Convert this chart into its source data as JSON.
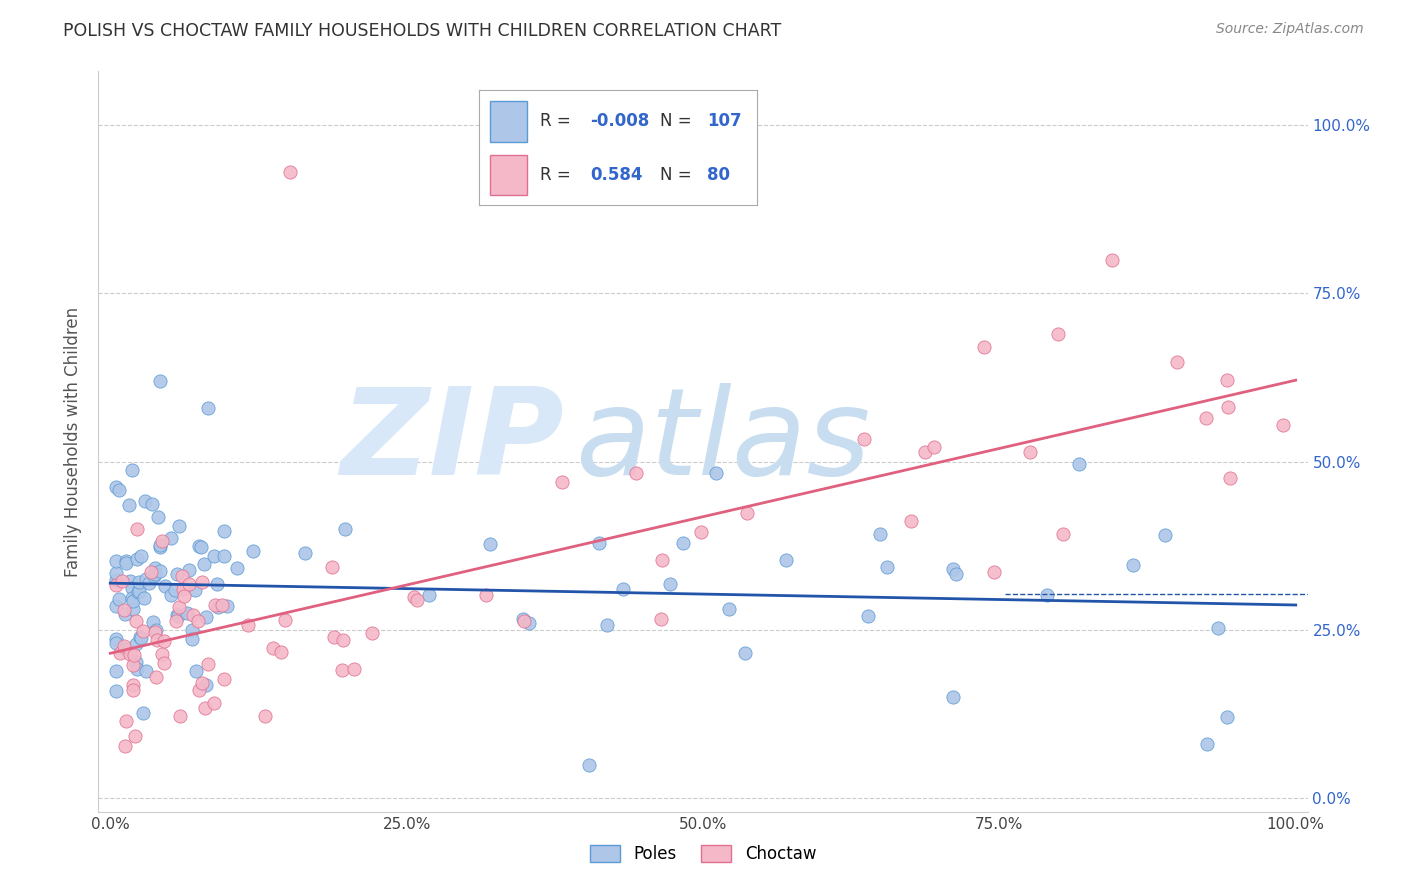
{
  "title": "POLISH VS CHOCTAW FAMILY HOUSEHOLDS WITH CHILDREN CORRELATION CHART",
  "source": "Source: ZipAtlas.com",
  "ylabel": "Family Households with Children",
  "xlim": [
    0.0,
    1.0
  ],
  "ylim": [
    0.0,
    1.0
  ],
  "poles_color": "#aec6e8",
  "poles_edge_color": "#5b9bd5",
  "choctaw_color": "#f4b8c8",
  "choctaw_edge_color": "#e07090",
  "poles_line_color": "#2255aa",
  "choctaw_line_color": "#e06080",
  "poles_R": -0.008,
  "poles_N": 107,
  "choctaw_R": 0.584,
  "choctaw_N": 80,
  "legend_text_color": "#3366cc",
  "watermark_zip": "ZIP",
  "watermark_atlas": "atlas",
  "watermark_color": "#d8e8f8",
  "background_color": "#ffffff",
  "grid_color": "#cccccc",
  "right_tick_color": "#3366cc",
  "title_color": "#333333",
  "source_color": "#888888",
  "ylabel_color": "#555555"
}
